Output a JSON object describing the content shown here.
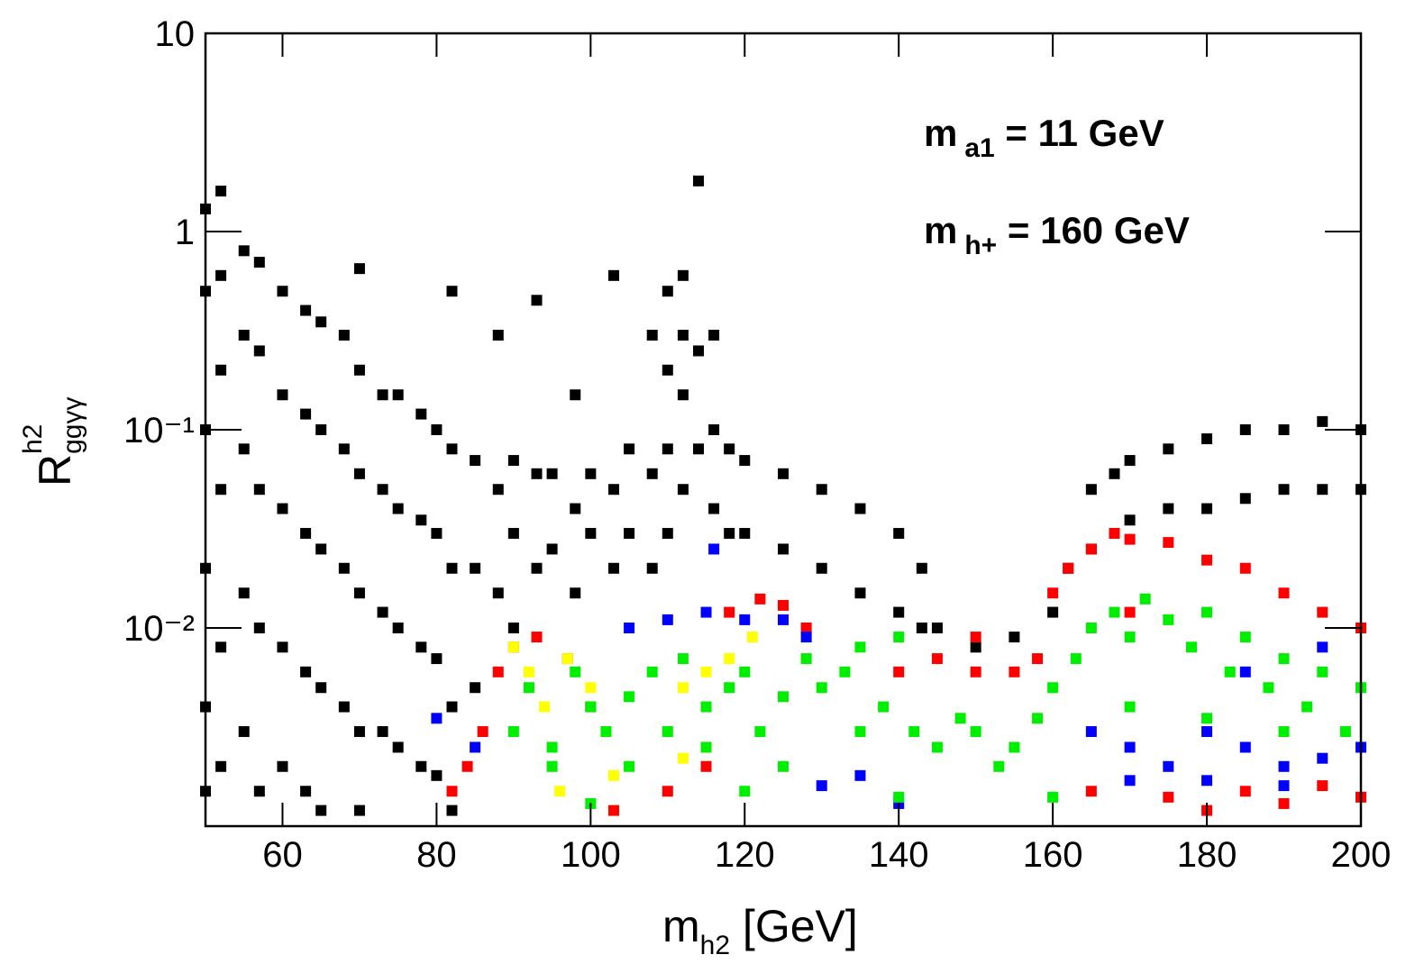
{
  "chart_data": {
    "type": "scatter",
    "x_label": {
      "base": "m",
      "sub": "h2",
      "rest": " [GeV]"
    },
    "y_label": {
      "base": "R",
      "sup": "h2",
      "sub": "ggγγ"
    },
    "annotations": [
      {
        "base": "m",
        "sub": "a1",
        "rest": " = 11 GeV"
      },
      {
        "base": "m",
        "sub": "h+",
        "rest": " = 160 GeV"
      }
    ],
    "xlim": [
      50,
      200
    ],
    "xticks": [
      60,
      80,
      100,
      120,
      140,
      160,
      180,
      200
    ],
    "ylim": [
      0.001,
      10
    ],
    "ylog": true,
    "yticks": [
      {
        "value": 0.01,
        "label": "10⁻²"
      },
      {
        "value": 0.1,
        "label": "10⁻¹"
      },
      1,
      10
    ],
    "series": [
      {
        "color": "#000000",
        "x": [
          50,
          50,
          50,
          50,
          50,
          50,
          52,
          52,
          52,
          52,
          52,
          52,
          55,
          55,
          55,
          55,
          55,
          57,
          57,
          57,
          57,
          57,
          60,
          60,
          60,
          60,
          60,
          63,
          63,
          63,
          63,
          63,
          65,
          65,
          65,
          65,
          65,
          68,
          68,
          68,
          68,
          70,
          70,
          70,
          70,
          70,
          70,
          73,
          73,
          73,
          73,
          75,
          75,
          75,
          75,
          78,
          78,
          78,
          78,
          80,
          80,
          80,
          80,
          82,
          82,
          82,
          82,
          82,
          85,
          85,
          85,
          88,
          88,
          88,
          90,
          90,
          90,
          93,
          93,
          93,
          95,
          95,
          98,
          98,
          98,
          100,
          100,
          103,
          103,
          103,
          105,
          105,
          108,
          108,
          108,
          110,
          110,
          110,
          110,
          112,
          112,
          112,
          112,
          114,
          114,
          114,
          116,
          116,
          116,
          118,
          118,
          120,
          120,
          125,
          125,
          130,
          130,
          135,
          135,
          140,
          140,
          143,
          143,
          145,
          150,
          155,
          160,
          162,
          165,
          165,
          168,
          168,
          170,
          170,
          175,
          175,
          180,
          180,
          185,
          185,
          190,
          190,
          195,
          195,
          200,
          200
        ],
        "values": [
          1.3,
          0.5,
          0.1,
          0.02,
          0.004,
          0.0015,
          1.6,
          0.6,
          0.2,
          0.05,
          0.008,
          0.002,
          0.8,
          0.3,
          0.08,
          0.015,
          0.003,
          0.7,
          0.25,
          0.05,
          0.01,
          0.0015,
          0.5,
          0.15,
          0.04,
          0.008,
          0.002,
          0.4,
          0.12,
          0.03,
          0.006,
          0.0015,
          0.35,
          0.1,
          0.025,
          0.005,
          0.0012,
          0.3,
          0.08,
          0.02,
          0.004,
          0.65,
          0.2,
          0.06,
          0.015,
          0.003,
          0.0012,
          0.15,
          0.05,
          0.012,
          0.003,
          0.15,
          0.04,
          0.01,
          0.0025,
          0.12,
          0.035,
          0.008,
          0.002,
          0.1,
          0.03,
          0.007,
          0.0018,
          0.5,
          0.08,
          0.02,
          0.004,
          0.0012,
          0.07,
          0.02,
          0.005,
          0.3,
          0.05,
          0.015,
          0.07,
          0.03,
          0.01,
          0.45,
          0.06,
          0.02,
          0.06,
          0.025,
          0.15,
          0.04,
          0.015,
          0.06,
          0.03,
          0.6,
          0.05,
          0.02,
          0.08,
          0.03,
          0.3,
          0.06,
          0.02,
          0.5,
          0.2,
          0.08,
          0.03,
          0.6,
          0.3,
          0.15,
          0.05,
          1.8,
          0.25,
          0.08,
          0.3,
          0.1,
          0.04,
          0.08,
          0.03,
          0.07,
          0.03,
          0.06,
          0.025,
          0.05,
          0.02,
          0.04,
          0.015,
          0.03,
          0.012,
          0.02,
          0.01,
          0.01,
          0.008,
          0.009,
          0.012,
          0.02,
          0.05,
          0.025,
          0.06,
          0.03,
          0.07,
          0.035,
          0.08,
          0.04,
          0.09,
          0.04,
          0.1,
          0.045,
          0.1,
          0.05,
          0.11,
          0.05,
          0.1,
          0.05
        ]
      },
      {
        "color": "#ff0000",
        "x": [
          82,
          84,
          86,
          88,
          90,
          93,
          97,
          100,
          103,
          110,
          115,
          118,
          122,
          125,
          128,
          140,
          145,
          150,
          155,
          158,
          160,
          162,
          165,
          168,
          170,
          175,
          180,
          185,
          190,
          195,
          200,
          165,
          175,
          185,
          195,
          200,
          180,
          190,
          150,
          170
        ],
        "values": [
          0.0015,
          0.002,
          0.003,
          0.006,
          0.008,
          0.009,
          0.007,
          0.004,
          0.0012,
          0.0015,
          0.002,
          0.012,
          0.014,
          0.013,
          0.01,
          0.006,
          0.007,
          0.006,
          0.006,
          0.007,
          0.015,
          0.02,
          0.025,
          0.03,
          0.028,
          0.027,
          0.022,
          0.02,
          0.015,
          0.012,
          0.01,
          0.0015,
          0.0014,
          0.0015,
          0.0016,
          0.0014,
          0.0012,
          0.0013,
          0.009,
          0.012
        ]
      },
      {
        "color": "#0000ff",
        "x": [
          80,
          85,
          105,
          110,
          115,
          116,
          120,
          125,
          128,
          130,
          135,
          140,
          165,
          170,
          175,
          180,
          185,
          190,
          195,
          200,
          170,
          180,
          190,
          185,
          195
        ],
        "values": [
          0.0035,
          0.0025,
          0.01,
          0.011,
          0.012,
          0.025,
          0.011,
          0.011,
          0.009,
          0.0016,
          0.0018,
          0.0013,
          0.003,
          0.0025,
          0.002,
          0.003,
          0.0025,
          0.002,
          0.0022,
          0.0025,
          0.0017,
          0.0017,
          0.0016,
          0.006,
          0.008
        ]
      },
      {
        "color": "#ffff00",
        "x": [
          90,
          92,
          94,
          97,
          100,
          103,
          112,
          115,
          118,
          121,
          96,
          112
        ],
        "values": [
          0.008,
          0.006,
          0.004,
          0.007,
          0.005,
          0.0018,
          0.005,
          0.006,
          0.007,
          0.009,
          0.0015,
          0.0022
        ]
      },
      {
        "color": "#00ee00",
        "x": [
          90,
          92,
          95,
          98,
          100,
          102,
          105,
          108,
          110,
          112,
          115,
          118,
          120,
          122,
          125,
          128,
          130,
          133,
          135,
          138,
          140,
          142,
          145,
          148,
          150,
          153,
          155,
          158,
          160,
          163,
          165,
          168,
          170,
          172,
          175,
          178,
          180,
          183,
          185,
          188,
          190,
          193,
          195,
          198,
          200,
          100,
          120,
          140,
          160,
          95,
          105,
          115,
          125,
          135,
          170,
          180,
          190
        ],
        "values": [
          0.003,
          0.005,
          0.0025,
          0.006,
          0.004,
          0.003,
          0.0045,
          0.006,
          0.003,
          0.007,
          0.004,
          0.005,
          0.006,
          0.003,
          0.0045,
          0.007,
          0.005,
          0.006,
          0.008,
          0.004,
          0.009,
          0.003,
          0.0025,
          0.0035,
          0.003,
          0.002,
          0.0025,
          0.0035,
          0.005,
          0.007,
          0.01,
          0.012,
          0.009,
          0.014,
          0.011,
          0.008,
          0.012,
          0.006,
          0.009,
          0.005,
          0.007,
          0.004,
          0.006,
          0.003,
          0.005,
          0.0013,
          0.0015,
          0.0014,
          0.0014,
          0.002,
          0.002,
          0.0025,
          0.002,
          0.003,
          0.004,
          0.0035,
          0.003
        ]
      }
    ]
  }
}
